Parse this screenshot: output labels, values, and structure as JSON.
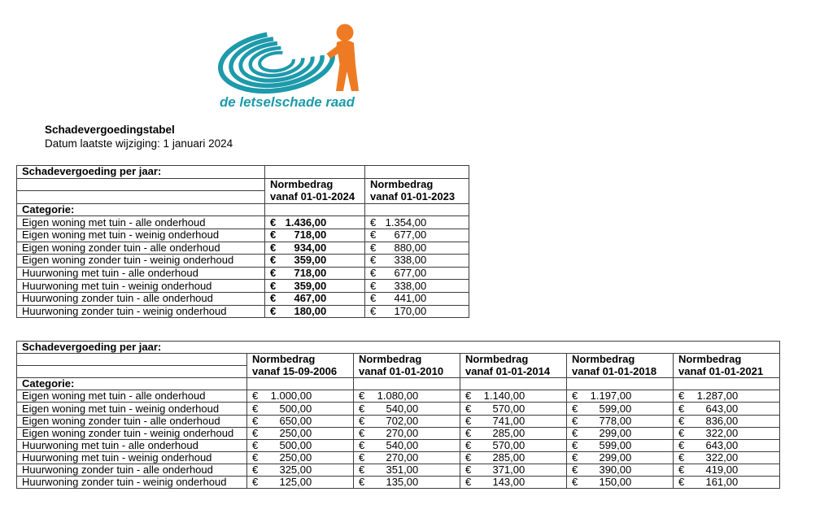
{
  "currency": "€",
  "logo": {
    "text": "de letselschade raad",
    "teal": "#1d9aab",
    "orange": "#ee7b23"
  },
  "heading": {
    "title": "Schadevergoedingstabel",
    "subtitle": "Datum laatste wijziging: 1 januari 2024"
  },
  "table1": {
    "title": "Schadevergoeding per jaar:",
    "category_label": "Categorie:",
    "columns": [
      {
        "line1": "Normbedrag",
        "line2": "vanaf 01-01-2024"
      },
      {
        "line1": "Normbedrag",
        "line2": "vanaf 01-01-2023"
      }
    ],
    "rows": [
      {
        "label": "Eigen woning met tuin - alle onderhoud",
        "values": [
          "1.436,00",
          "1.354,00"
        ]
      },
      {
        "label": "Eigen woning met tuin - weinig onderhoud",
        "values": [
          "718,00",
          "677,00"
        ]
      },
      {
        "label": "Eigen woning zonder tuin - alle onderhoud",
        "values": [
          "934,00",
          "880,00"
        ]
      },
      {
        "label": "Eigen woning zonder tuin - weinig onderhoud",
        "values": [
          "359,00",
          "338,00"
        ]
      },
      {
        "label": "Huurwoning met tuin - alle onderhoud",
        "values": [
          "718,00",
          "677,00"
        ]
      },
      {
        "label": "Huurwoning met tuin - weinig onderhoud",
        "values": [
          "359,00",
          "338,00"
        ]
      },
      {
        "label": "Huurwoning zonder tuin - alle onderhoud",
        "values": [
          "467,00",
          "441,00"
        ]
      },
      {
        "label": "Huurwoning zonder tuin - weinig onderhoud",
        "values": [
          "180,00",
          "170,00"
        ]
      }
    ]
  },
  "table2": {
    "title": "Schadevergoeding per jaar:",
    "category_label": "Categorie:",
    "columns": [
      {
        "line1": "Normbedrag",
        "line2": "vanaf 15-09-2006"
      },
      {
        "line1": "Normbedrag",
        "line2": "vanaf 01-01-2010"
      },
      {
        "line1": "Normbedrag",
        "line2": "vanaf 01-01-2014"
      },
      {
        "line1": "Normbedrag",
        "line2": "vanaf 01-01-2018"
      },
      {
        "line1": "Normbedrag",
        "line2": "vanaf 01-01-2021"
      }
    ],
    "rows": [
      {
        "label": "Eigen woning met tuin - alle onderhoud",
        "values": [
          "1.000,00",
          "1.080,00",
          "1.140,00",
          "1.197,00",
          "1.287,00"
        ]
      },
      {
        "label": "Eigen woning met tuin - weinig onderhoud",
        "values": [
          "500,00",
          "540,00",
          "570,00",
          "599,00",
          "643,00"
        ]
      },
      {
        "label": "Eigen woning zonder tuin - alle onderhoud",
        "values": [
          "650,00",
          "702,00",
          "741,00",
          "778,00",
          "836,00"
        ]
      },
      {
        "label": "Eigen woning zonder tuin - weinig onderhoud",
        "values": [
          "250,00",
          "270,00",
          "285,00",
          "299,00",
          "322,00"
        ]
      },
      {
        "label": "Huurwoning met tuin - alle onderhoud",
        "values": [
          "500,00",
          "540,00",
          "570,00",
          "599,00",
          "643,00"
        ]
      },
      {
        "label": "Huurwoning met tuin - weinig onderhoud",
        "values": [
          "250,00",
          "270,00",
          "285,00",
          "299,00",
          "322,00"
        ]
      },
      {
        "label": "Huurwoning zonder tuin - alle onderhoud",
        "values": [
          "325,00",
          "351,00",
          "371,00",
          "390,00",
          "419,00"
        ]
      },
      {
        "label": "Huurwoning zonder tuin - weinig onderhoud",
        "values": [
          "125,00",
          "135,00",
          "143,00",
          "150,00",
          "161,00"
        ]
      }
    ]
  }
}
